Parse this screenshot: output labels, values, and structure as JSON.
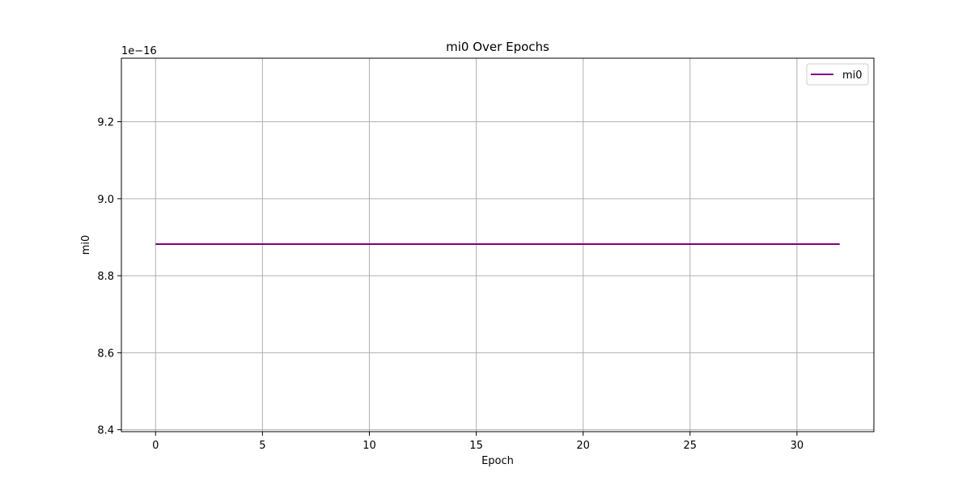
{
  "chart_data": {
    "type": "line",
    "title": "mi0 Over Epochs",
    "xlabel": "Epoch",
    "ylabel": "mi0",
    "y_offset_label": "1e−16",
    "xlim": [
      -1.6,
      33.6
    ],
    "ylim": [
      8.395,
      9.365
    ],
    "x_ticks": [
      0,
      5,
      10,
      15,
      20,
      25,
      30
    ],
    "x_tick_labels": [
      "0",
      "5",
      "10",
      "15",
      "20",
      "25",
      "30"
    ],
    "y_ticks": [
      8.4,
      8.6,
      8.8,
      9.0,
      9.2
    ],
    "y_tick_labels": [
      "8.4",
      "8.6",
      "8.8",
      "9.0",
      "9.2"
    ],
    "grid": true,
    "legend_position": "top-right",
    "series": [
      {
        "name": "mi0",
        "color": "#800080",
        "x": [
          0,
          1,
          2,
          3,
          4,
          5,
          6,
          7,
          8,
          9,
          10,
          11,
          12,
          13,
          14,
          15,
          16,
          17,
          18,
          19,
          20,
          21,
          22,
          23,
          24,
          25,
          26,
          27,
          28,
          29,
          30,
          31,
          32
        ],
        "y": [
          8.882,
          8.882,
          8.882,
          8.882,
          8.882,
          8.882,
          8.882,
          8.882,
          8.882,
          8.882,
          8.882,
          8.882,
          8.882,
          8.882,
          8.882,
          8.882,
          8.882,
          8.882,
          8.882,
          8.882,
          8.882,
          8.882,
          8.882,
          8.882,
          8.882,
          8.882,
          8.882,
          8.882,
          8.882,
          8.882,
          8.882,
          8.882,
          8.882
        ]
      }
    ],
    "colors": {
      "grid": "#b0b0b0",
      "axes": "#000000",
      "legend_border": "#cccccc"
    }
  }
}
